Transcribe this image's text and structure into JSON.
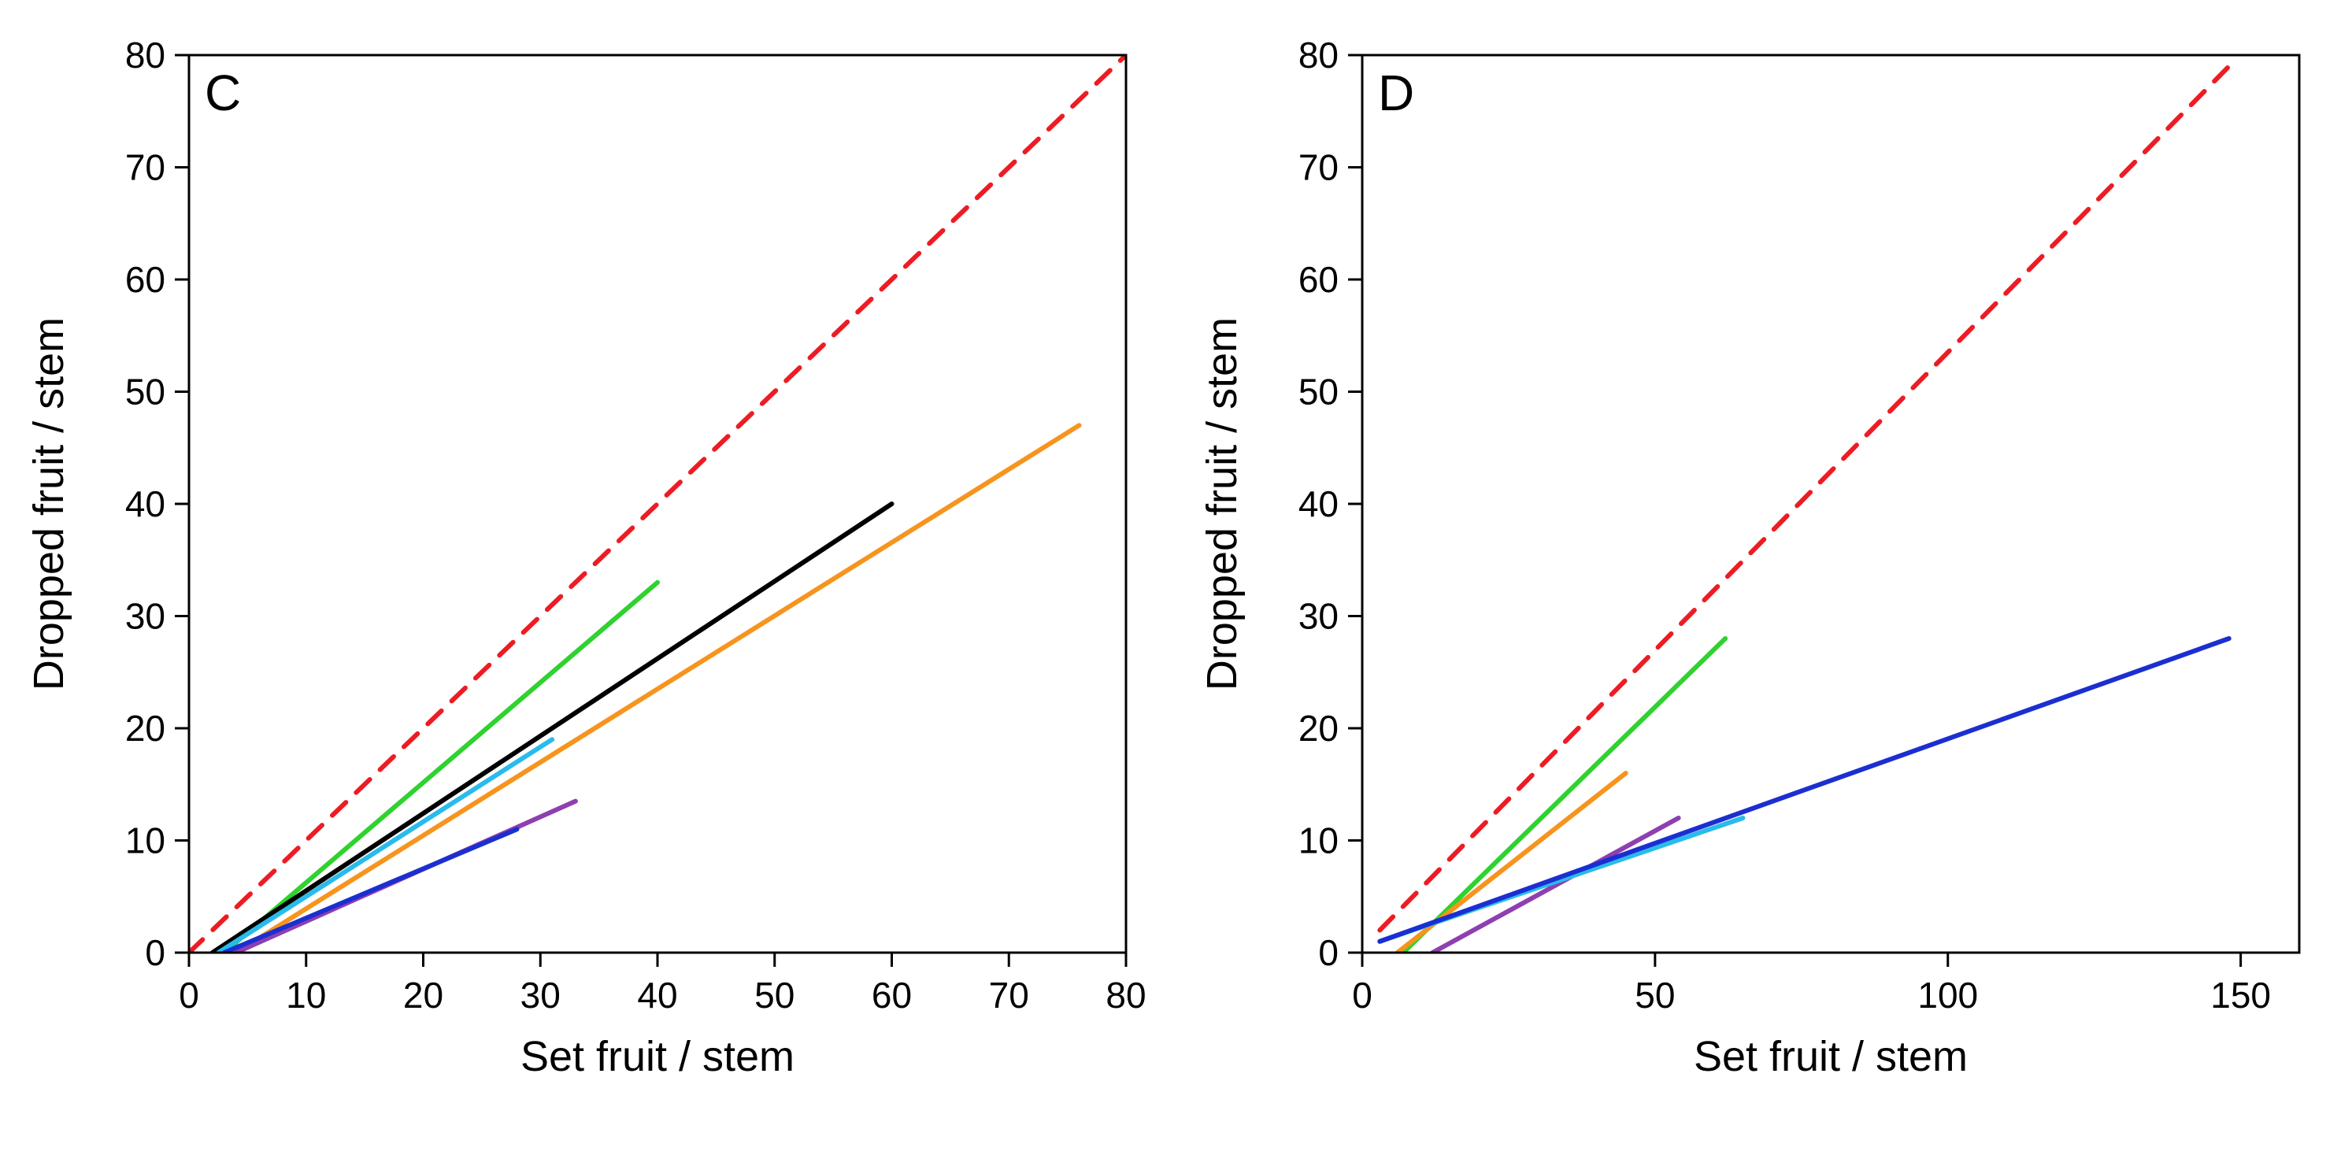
{
  "figure": {
    "background_color": "#ffffff",
    "panels": [
      {
        "id": "C",
        "panel_label": "C",
        "type": "line",
        "xlabel": "Set fruit / stem",
        "ylabel": "Dropped fruit / stem",
        "label_fontsize": 54,
        "tick_fontsize": 46,
        "panel_label_fontsize": 64,
        "xlim": [
          0,
          80
        ],
        "ylim": [
          0,
          80
        ],
        "xtick_step": 10,
        "ytick_step": 10,
        "axis_color": "#000000",
        "axis_width": 3,
        "aspect": "square",
        "lines": [
          {
            "name": "red-dashed",
            "color": "#ed1c24",
            "line_width": 6,
            "dash": "24 18",
            "points": [
              [
                0,
                0
              ],
              [
                80,
                80
              ]
            ]
          },
          {
            "name": "green",
            "color": "#2fd22f",
            "line_width": 6,
            "dash": null,
            "points": [
              [
                3,
                0
              ],
              [
                40,
                33
              ]
            ]
          },
          {
            "name": "black",
            "color": "#000000",
            "line_width": 6,
            "dash": null,
            "points": [
              [
                2,
                0
              ],
              [
                60,
                40
              ]
            ]
          },
          {
            "name": "orange",
            "color": "#f7941d",
            "line_width": 6,
            "dash": null,
            "points": [
              [
                4,
                0
              ],
              [
                76,
                47
              ]
            ]
          },
          {
            "name": "cyan",
            "color": "#29bbec",
            "line_width": 6,
            "dash": null,
            "points": [
              [
                2.5,
                0
              ],
              [
                31,
                19
              ]
            ]
          },
          {
            "name": "purple",
            "color": "#8e3fb0",
            "line_width": 6,
            "dash": null,
            "points": [
              [
                4,
                0
              ],
              [
                33,
                13.5
              ]
            ]
          },
          {
            "name": "blue",
            "color": "#1b2fd1",
            "line_width": 6,
            "dash": null,
            "points": [
              [
                3,
                0
              ],
              [
                28,
                11
              ]
            ]
          }
        ]
      },
      {
        "id": "D",
        "panel_label": "D",
        "type": "line",
        "xlabel": "Set fruit / stem",
        "ylabel": "Dropped fruit / stem",
        "label_fontsize": 54,
        "tick_fontsize": 46,
        "panel_label_fontsize": 64,
        "xlim": [
          0,
          160
        ],
        "ylim": [
          0,
          80
        ],
        "xtick_step": 50,
        "ytick_step": 10,
        "xticks": [
          0,
          50,
          100,
          150
        ],
        "axis_color": "#000000",
        "axis_width": 3,
        "aspect": "square",
        "lines": [
          {
            "name": "red-dashed",
            "color": "#ed1c24",
            "line_width": 6,
            "dash": "24 18",
            "points": [
              [
                3,
                2
              ],
              [
                148,
                79
              ]
            ]
          },
          {
            "name": "green",
            "color": "#2fd22f",
            "line_width": 6,
            "dash": null,
            "points": [
              [
                7,
                0
              ],
              [
                62,
                28
              ]
            ]
          },
          {
            "name": "orange",
            "color": "#f7941d",
            "line_width": 6,
            "dash": null,
            "points": [
              [
                6,
                0
              ],
              [
                45,
                16
              ]
            ]
          },
          {
            "name": "purple",
            "color": "#8e3fb0",
            "line_width": 6,
            "dash": null,
            "points": [
              [
                12,
                0
              ],
              [
                54,
                12
              ]
            ]
          },
          {
            "name": "cyan",
            "color": "#29bbec",
            "line_width": 6,
            "dash": null,
            "points": [
              [
                3,
                1
              ],
              [
                65,
                12
              ]
            ]
          },
          {
            "name": "blue",
            "color": "#1b2fd1",
            "line_width": 6,
            "dash": null,
            "points": [
              [
                3,
                1
              ],
              [
                148,
                28
              ]
            ]
          }
        ]
      }
    ]
  }
}
